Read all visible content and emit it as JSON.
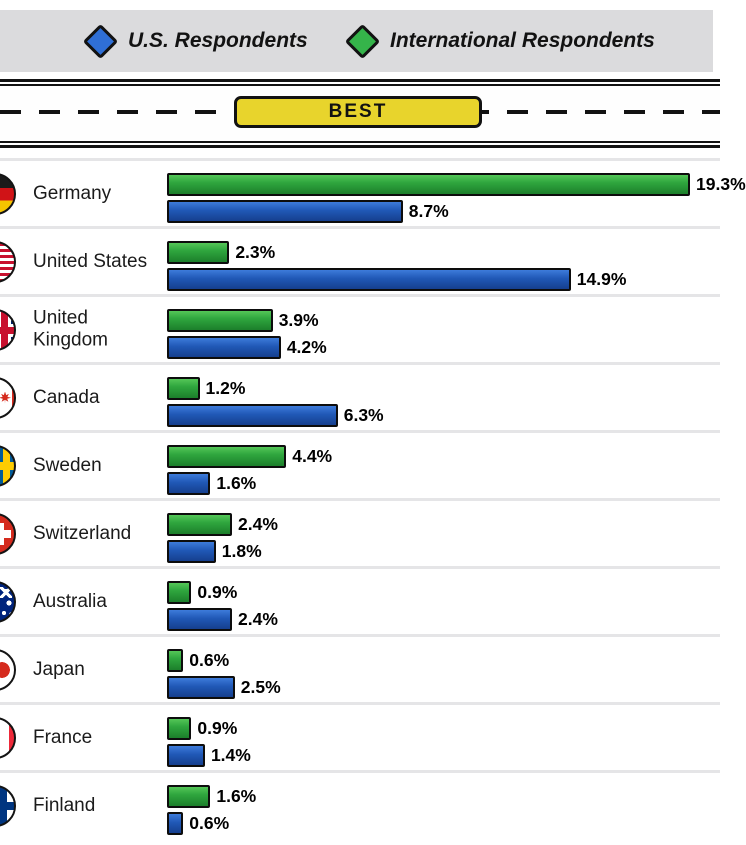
{
  "legend": {
    "us_label": "U.S. Respondents",
    "intl_label": "International Respondents",
    "us_color": "#2f6fd6",
    "intl_color": "#35b44a"
  },
  "road": {
    "sign_label": "BEST"
  },
  "chart_data": {
    "type": "bar",
    "orientation": "horizontal",
    "unit": "%",
    "title": "",
    "annotation": "BEST",
    "legend_position": "top",
    "grid": false,
    "xlim": [
      0,
      19.3
    ],
    "categories": [
      "Germany",
      "United States",
      "United Kingdom",
      "Canada",
      "Sweden",
      "Switzerland",
      "Australia",
      "Japan",
      "France",
      "Finland"
    ],
    "series": [
      {
        "name": "International Respondents",
        "color": "#35b44a",
        "values": [
          19.3,
          2.3,
          3.9,
          1.2,
          4.4,
          2.4,
          0.9,
          0.6,
          0.9,
          1.6
        ]
      },
      {
        "name": "U.S. Respondents",
        "color": "#2f6fd6",
        "values": [
          8.7,
          14.9,
          4.2,
          6.3,
          1.6,
          1.8,
          2.4,
          2.5,
          1.4,
          0.6
        ]
      }
    ]
  },
  "rows": [
    {
      "country": "Germany",
      "flag": "germany",
      "intl_value": 19.3,
      "intl_label": "19.3%",
      "us_value": 8.7,
      "us_label": "8.7%"
    },
    {
      "country": "United States",
      "flag": "us",
      "intl_value": 2.3,
      "intl_label": "2.3%",
      "us_value": 14.9,
      "us_label": "14.9%"
    },
    {
      "country": "United Kingdom",
      "flag": "uk",
      "intl_value": 3.9,
      "intl_label": "3.9%",
      "us_value": 4.2,
      "us_label": "4.2%"
    },
    {
      "country": "Canada",
      "flag": "canada",
      "intl_value": 1.2,
      "intl_label": "1.2%",
      "us_value": 6.3,
      "us_label": "6.3%"
    },
    {
      "country": "Sweden",
      "flag": "sweden",
      "intl_value": 4.4,
      "intl_label": "4.4%",
      "us_value": 1.6,
      "us_label": "1.6%"
    },
    {
      "country": "Switzerland",
      "flag": "switzerland",
      "intl_value": 2.4,
      "intl_label": "2.4%",
      "us_value": 1.8,
      "us_label": "1.8%"
    },
    {
      "country": "Australia",
      "flag": "australia",
      "intl_value": 0.9,
      "intl_label": "0.9%",
      "us_value": 2.4,
      "us_label": "2.4%"
    },
    {
      "country": "Japan",
      "flag": "japan",
      "intl_value": 0.6,
      "intl_label": "0.6%",
      "us_value": 2.5,
      "us_label": "2.5%"
    },
    {
      "country": "France",
      "flag": "france",
      "intl_value": 0.9,
      "intl_label": "0.9%",
      "us_value": 1.4,
      "us_label": "1.4%"
    },
    {
      "country": "Finland",
      "flag": "finland",
      "intl_value": 1.6,
      "intl_label": "1.6%",
      "us_value": 0.6,
      "us_label": "0.6%"
    }
  ]
}
